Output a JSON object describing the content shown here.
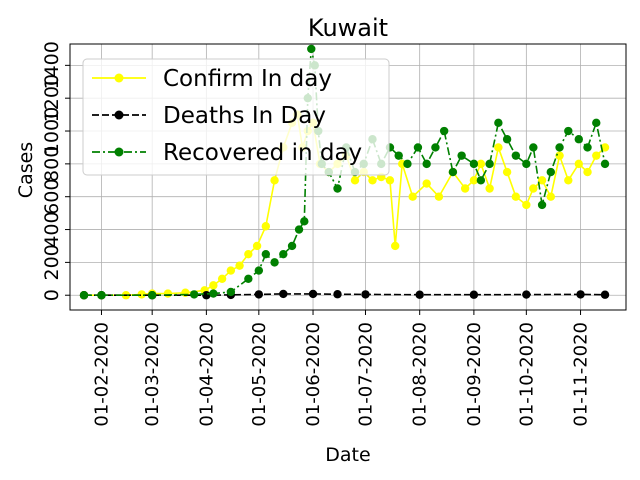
{
  "chart_data": {
    "type": "line",
    "title": "Kuwait",
    "xlabel": "Date",
    "ylabel": "Cases",
    "x_range": [
      "2020-01-14",
      "2020-11-27"
    ],
    "y_range": [
      -90,
      1530
    ],
    "grid": true,
    "legend_position": "top-left",
    "x_ticks": [
      {
        "date": "2020-02-01",
        "label": "01-02-2020"
      },
      {
        "date": "2020-03-01",
        "label": "01-03-2020"
      },
      {
        "date": "2020-04-01",
        "label": "01-04-2020"
      },
      {
        "date": "2020-05-01",
        "label": "01-05-2020"
      },
      {
        "date": "2020-06-01",
        "label": "01-06-2020"
      },
      {
        "date": "2020-07-01",
        "label": "01-07-2020"
      },
      {
        "date": "2020-08-01",
        "label": "01-08-2020"
      },
      {
        "date": "2020-09-01",
        "label": "01-09-2020"
      },
      {
        "date": "2020-10-01",
        "label": "01-10-2020"
      },
      {
        "date": "2020-11-01",
        "label": "01-11-2020"
      }
    ],
    "y_ticks": [
      {
        "value": 0,
        "label": "0"
      },
      {
        "value": 200,
        "label": "200"
      },
      {
        "value": 400,
        "label": "400"
      },
      {
        "value": 600,
        "label": "600"
      },
      {
        "value": 800,
        "label": "800"
      },
      {
        "value": 1000,
        "label": "1000"
      },
      {
        "value": 1200,
        "label": "1200"
      },
      {
        "value": 1400,
        "label": "1400"
      }
    ],
    "series": [
      {
        "name": "Confirm In day",
        "color": "#ffff00",
        "line_style": "solid",
        "points": [
          [
            "2020-01-22",
            0
          ],
          [
            "2020-02-01",
            0
          ],
          [
            "2020-02-15",
            0
          ],
          [
            "2020-02-24",
            5
          ],
          [
            "2020-03-01",
            10
          ],
          [
            "2020-03-10",
            10
          ],
          [
            "2020-03-20",
            15
          ],
          [
            "2020-03-31",
            30
          ],
          [
            "2020-04-05",
            60
          ],
          [
            "2020-04-10",
            100
          ],
          [
            "2020-04-15",
            150
          ],
          [
            "2020-04-20",
            180
          ],
          [
            "2020-04-25",
            250
          ],
          [
            "2020-04-30",
            300
          ],
          [
            "2020-05-05",
            420
          ],
          [
            "2020-05-10",
            700
          ],
          [
            "2020-05-15",
            900
          ],
          [
            "2020-05-20",
            1050
          ],
          [
            "2020-05-23",
            1100
          ],
          [
            "2020-05-26",
            900
          ],
          [
            "2020-05-29",
            1000
          ],
          [
            "2020-06-01",
            1050
          ],
          [
            "2020-06-05",
            800
          ],
          [
            "2020-06-10",
            750
          ],
          [
            "2020-06-15",
            800
          ],
          [
            "2020-06-20",
            850
          ],
          [
            "2020-06-25",
            700
          ],
          [
            "2020-06-30",
            750
          ],
          [
            "2020-07-05",
            700
          ],
          [
            "2020-07-10",
            720
          ],
          [
            "2020-07-15",
            700
          ],
          [
            "2020-07-18",
            300
          ],
          [
            "2020-07-22",
            800
          ],
          [
            "2020-07-28",
            600
          ],
          [
            "2020-08-05",
            680
          ],
          [
            "2020-08-12",
            600
          ],
          [
            "2020-08-20",
            750
          ],
          [
            "2020-08-27",
            650
          ],
          [
            "2020-09-01",
            700
          ],
          [
            "2020-09-05",
            800
          ],
          [
            "2020-09-10",
            650
          ],
          [
            "2020-09-15",
            900
          ],
          [
            "2020-09-20",
            750
          ],
          [
            "2020-09-25",
            600
          ],
          [
            "2020-10-01",
            550
          ],
          [
            "2020-10-05",
            650
          ],
          [
            "2020-10-10",
            700
          ],
          [
            "2020-10-15",
            600
          ],
          [
            "2020-10-20",
            850
          ],
          [
            "2020-10-25",
            700
          ],
          [
            "2020-10-31",
            800
          ],
          [
            "2020-11-05",
            750
          ],
          [
            "2020-11-10",
            850
          ],
          [
            "2020-11-15",
            900
          ]
        ]
      },
      {
        "name": "Deaths In Day",
        "color": "#000000",
        "line_style": "dashed",
        "points": [
          [
            "2020-01-22",
            0
          ],
          [
            "2020-02-01",
            0
          ],
          [
            "2020-03-01",
            0
          ],
          [
            "2020-04-01",
            0
          ],
          [
            "2020-04-15",
            2
          ],
          [
            "2020-05-01",
            5
          ],
          [
            "2020-05-15",
            8
          ],
          [
            "2020-06-01",
            8
          ],
          [
            "2020-06-15",
            6
          ],
          [
            "2020-07-01",
            5
          ],
          [
            "2020-08-01",
            3
          ],
          [
            "2020-09-01",
            3
          ],
          [
            "2020-10-01",
            4
          ],
          [
            "2020-11-01",
            5
          ],
          [
            "2020-11-15",
            3
          ]
        ]
      },
      {
        "name": "Recovered in day",
        "color": "#008000",
        "line_style": "dashdot",
        "points": [
          [
            "2020-01-22",
            0
          ],
          [
            "2020-02-01",
            0
          ],
          [
            "2020-03-01",
            0
          ],
          [
            "2020-03-25",
            5
          ],
          [
            "2020-04-05",
            10
          ],
          [
            "2020-04-15",
            20
          ],
          [
            "2020-04-25",
            100
          ],
          [
            "2020-05-01",
            150
          ],
          [
            "2020-05-05",
            250
          ],
          [
            "2020-05-10",
            200
          ],
          [
            "2020-05-15",
            250
          ],
          [
            "2020-05-20",
            300
          ],
          [
            "2020-05-24",
            400
          ],
          [
            "2020-05-27",
            450
          ],
          [
            "2020-05-29",
            1200
          ],
          [
            "2020-05-31",
            1500
          ],
          [
            "2020-06-02",
            1400
          ],
          [
            "2020-06-04",
            1000
          ],
          [
            "2020-06-06",
            800
          ],
          [
            "2020-06-10",
            750
          ],
          [
            "2020-06-15",
            650
          ],
          [
            "2020-06-20",
            900
          ],
          [
            "2020-06-25",
            750
          ],
          [
            "2020-06-30",
            800
          ],
          [
            "2020-07-05",
            950
          ],
          [
            "2020-07-10",
            800
          ],
          [
            "2020-07-15",
            900
          ],
          [
            "2020-07-20",
            850
          ],
          [
            "2020-07-25",
            800
          ],
          [
            "2020-07-31",
            900
          ],
          [
            "2020-08-05",
            800
          ],
          [
            "2020-08-10",
            900
          ],
          [
            "2020-08-15",
            1000
          ],
          [
            "2020-08-20",
            750
          ],
          [
            "2020-08-25",
            850
          ],
          [
            "2020-09-01",
            800
          ],
          [
            "2020-09-05",
            700
          ],
          [
            "2020-09-10",
            800
          ],
          [
            "2020-09-15",
            1050
          ],
          [
            "2020-09-20",
            950
          ],
          [
            "2020-09-25",
            850
          ],
          [
            "2020-10-01",
            800
          ],
          [
            "2020-10-05",
            900
          ],
          [
            "2020-10-10",
            550
          ],
          [
            "2020-10-15",
            750
          ],
          [
            "2020-10-20",
            900
          ],
          [
            "2020-10-25",
            1000
          ],
          [
            "2020-10-31",
            950
          ],
          [
            "2020-11-05",
            900
          ],
          [
            "2020-11-10",
            1050
          ],
          [
            "2020-11-15",
            800
          ]
        ]
      }
    ]
  }
}
